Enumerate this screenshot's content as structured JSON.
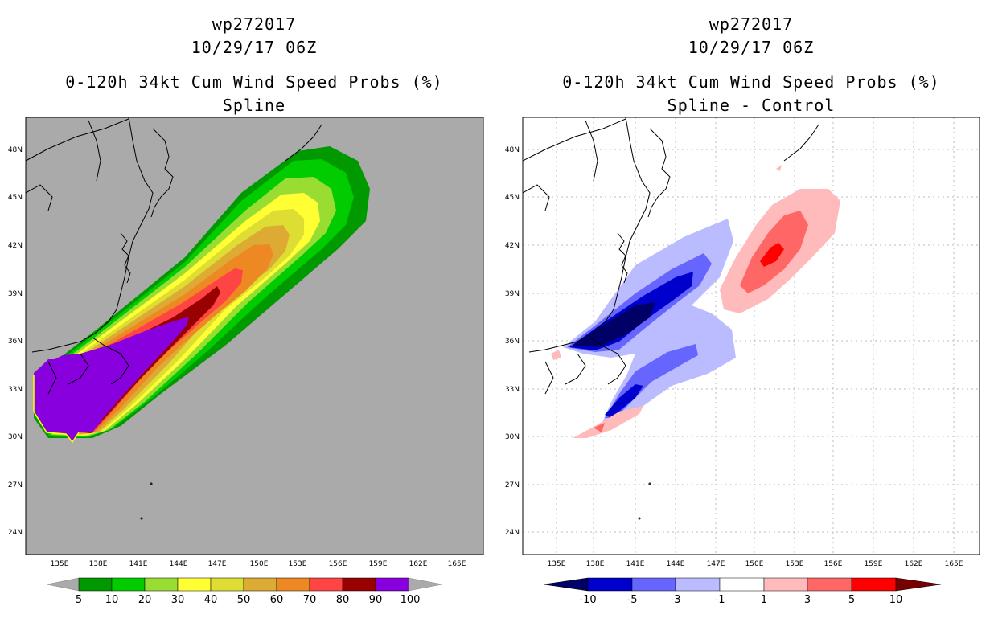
{
  "left_panel": {
    "title_lines": [
      "wp272017",
      "10/29/17 06Z",
      "0-120h 34kt Cum Wind Speed Probs (%)",
      "Spline"
    ],
    "colorbar": {
      "labels": [
        "5",
        "10",
        "20",
        "30",
        "40",
        "50",
        "60",
        "70",
        "80",
        "90",
        "100"
      ],
      "colors": [
        "#009900",
        "#00cc00",
        "#99dd33",
        "#ffff33",
        "#dddd33",
        "#ddaa33",
        "#ee8822",
        "#ff4444",
        "#990000",
        "#8800dd"
      ],
      "end_color": "#aaaaaa"
    }
  },
  "right_panel": {
    "title_lines": [
      "wp272017",
      "10/29/17 06Z",
      "0-120h 34kt Cum Wind Speed Probs (%)",
      "Spline - Control"
    ],
    "colorbar": {
      "labels": [
        "-10",
        "-5",
        "-3",
        "-1",
        "1",
        "3",
        "5",
        "10"
      ],
      "colors": [
        "#0000cc",
        "#6666ff",
        "#bbbbff",
        "#ffffff",
        "#ffbbbb",
        "#ff6666",
        "#ff0000"
      ],
      "left_end_color": "#000066",
      "right_end_color": "#770000"
    }
  },
  "axes": {
    "lon_labels": [
      "135E",
      "138E",
      "141E",
      "144E",
      "147E",
      "150E",
      "153E",
      "156E",
      "159E",
      "162E",
      "165E"
    ],
    "lat_labels": [
      "48N",
      "45N",
      "42N",
      "39N",
      "36N",
      "33N",
      "30N",
      "27N",
      "24N"
    ]
  }
}
